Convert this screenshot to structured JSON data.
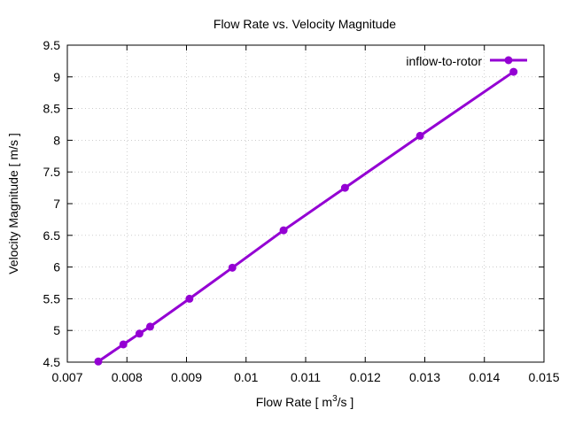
{
  "chart_data": {
    "type": "line",
    "title": "Flow Rate vs. Velocity Magnitude",
    "xlabel_main": "Flow Rate [ m",
    "xlabel_sup": "3",
    "xlabel_tail": "/s ]",
    "ylabel": "Velocity Magnitude [ m/s ]",
    "xlim": [
      0.007,
      0.015
    ],
    "ylim": [
      4.5,
      9.5
    ],
    "xticks": [
      0.007,
      0.008,
      0.009,
      0.01,
      0.011,
      0.012,
      0.013,
      0.014,
      0.015
    ],
    "xtick_labels": [
      "0.007",
      "0.008",
      "0.009",
      "0.01",
      "0.011",
      "0.012",
      "0.013",
      "0.014",
      "0.015"
    ],
    "yticks": [
      4.5,
      5,
      5.5,
      6,
      6.5,
      7,
      7.5,
      8,
      8.5,
      9,
      9.5
    ],
    "ytick_labels": [
      "4.5",
      "5",
      "5.5",
      "6",
      "6.5",
      "7",
      "7.5",
      "8",
      "8.5",
      "9",
      "9.5"
    ],
    "grid": true,
    "legend_position": "top-right",
    "series": [
      {
        "name": "inflow-to-rotor",
        "color": "#9400d3",
        "x": [
          0.00752,
          0.00794,
          0.00821,
          0.00839,
          0.00905,
          0.00977,
          0.01063,
          0.01166,
          0.01292,
          0.01449
        ],
        "y": [
          4.51,
          4.78,
          4.95,
          5.06,
          5.5,
          5.99,
          6.58,
          7.25,
          8.07,
          9.08
        ]
      }
    ]
  }
}
